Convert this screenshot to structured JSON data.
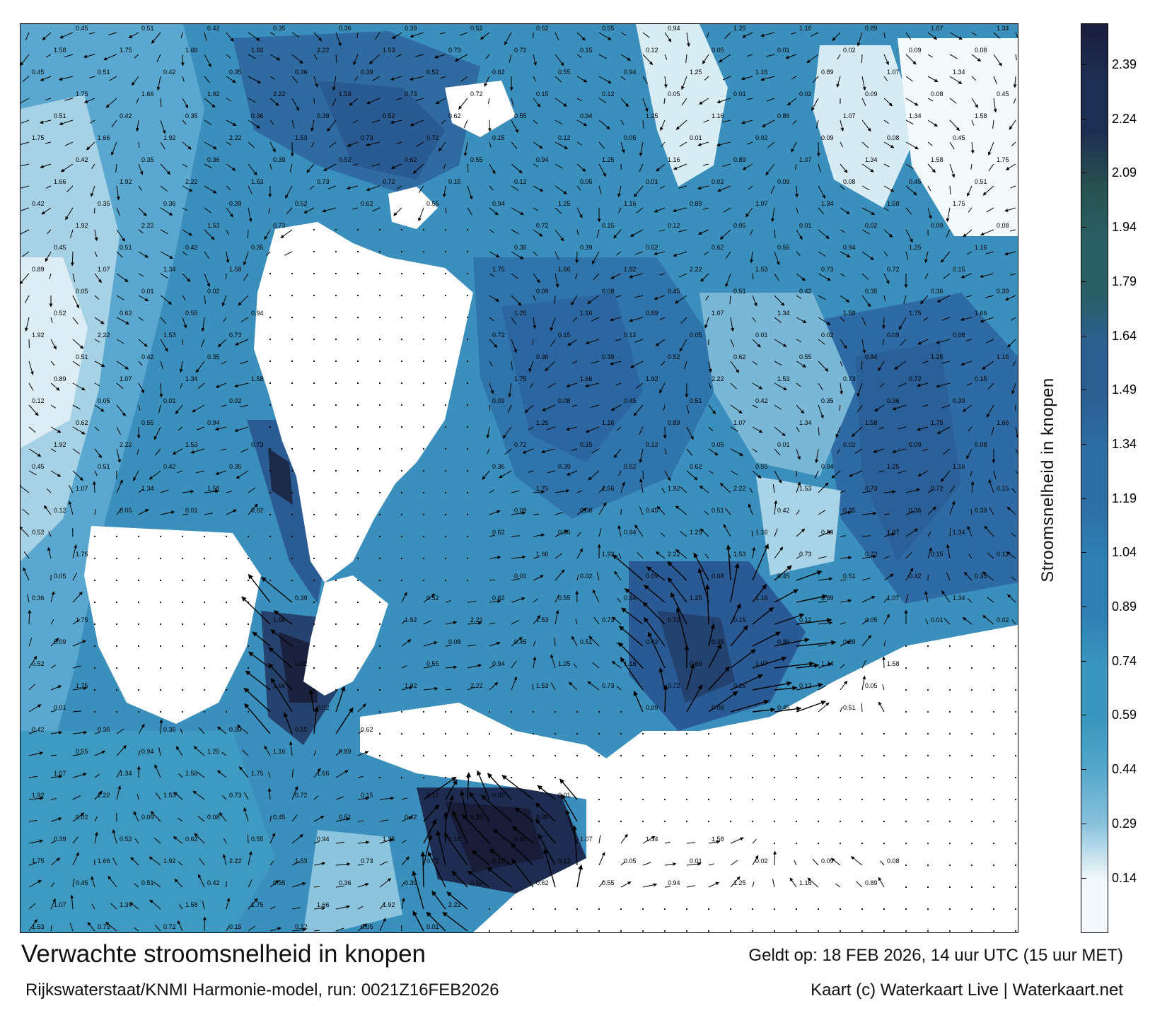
{
  "map": {
    "title": "Verwachte stroomsnelheid in knopen",
    "model_run": "Rijkswaterstaat/KNMI Harmonie-model, run: 0021Z16FEB2026",
    "valid_time": "Geldt op: 18 FEB 2026, 14 uur UTC (15 uur MET)",
    "credit": "Kaart (c) Waterkaart Live | Waterkaart.net",
    "sample_speed_labels": [
      "0.45",
      "0.51",
      "0.42",
      "0.35",
      "0.36",
      "0.39",
      "0.52",
      "0.62",
      "0.55",
      "0.94",
      "1.25",
      "1.16",
      "0.89",
      "1.07",
      "1.34",
      "1.58",
      "1.75",
      "1.66",
      "1.92",
      "2.22",
      "1.53",
      "0.73",
      "0.72",
      "0.15",
      "0.12",
      "0.05",
      "0.01",
      "0.02",
      "0.09",
      "0.08"
    ]
  },
  "colorbar": {
    "label": "Stroomsnelheid in knopen",
    "ticks": [
      "2.39",
      "2.24",
      "2.09",
      "1.94",
      "1.79",
      "1.64",
      "1.49",
      "1.34",
      "1.19",
      "1.04",
      "0.89",
      "0.74",
      "0.59",
      "0.44",
      "0.29",
      "0.14"
    ],
    "colors": {
      "band_top": "#1a1d3d",
      "band_2": "#1e2e52",
      "band_3": "#27504f",
      "band_4": "#2a5f64",
      "band_5": "#2b5f92",
      "band_6": "#2d6fa4",
      "band_7": "#2f7fb4",
      "band_8": "#3a96bd",
      "band_9": "#56a8cc",
      "band_10": "#8bc3dd",
      "band_bottom": "#f2f8fb"
    }
  }
}
